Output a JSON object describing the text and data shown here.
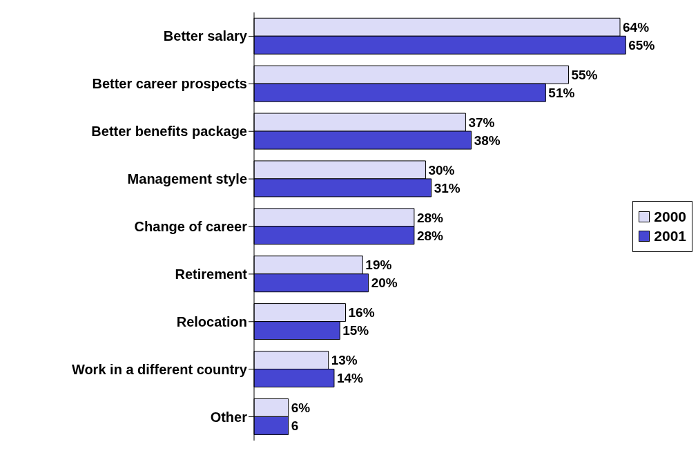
{
  "chart_data": {
    "type": "bar",
    "orientation": "horizontal",
    "categories": [
      "Better salary",
      "Better career prospects",
      "Better benefits package",
      "Management style",
      "Change of career",
      "Retirement",
      "Relocation",
      "Work in a different country",
      "Other"
    ],
    "series": [
      {
        "name": "2000",
        "color": "#dcdcf8",
        "values": [
          64,
          55,
          37,
          30,
          28,
          19,
          16,
          13,
          6
        ],
        "value_labels": [
          "64%",
          "55%",
          "37%",
          "30%",
          "28%",
          "19%",
          "16%",
          "13%",
          "6%"
        ]
      },
      {
        "name": "2001",
        "color": "#4646d2",
        "values": [
          65,
          51,
          38,
          31,
          28,
          20,
          15,
          14,
          6
        ],
        "value_labels": [
          "65%",
          "51%",
          "38%",
          "31%",
          "28%",
          "20%",
          "15%",
          "14%",
          "6"
        ]
      }
    ],
    "legend": "right",
    "grid": false,
    "tick_labels": "y"
  }
}
